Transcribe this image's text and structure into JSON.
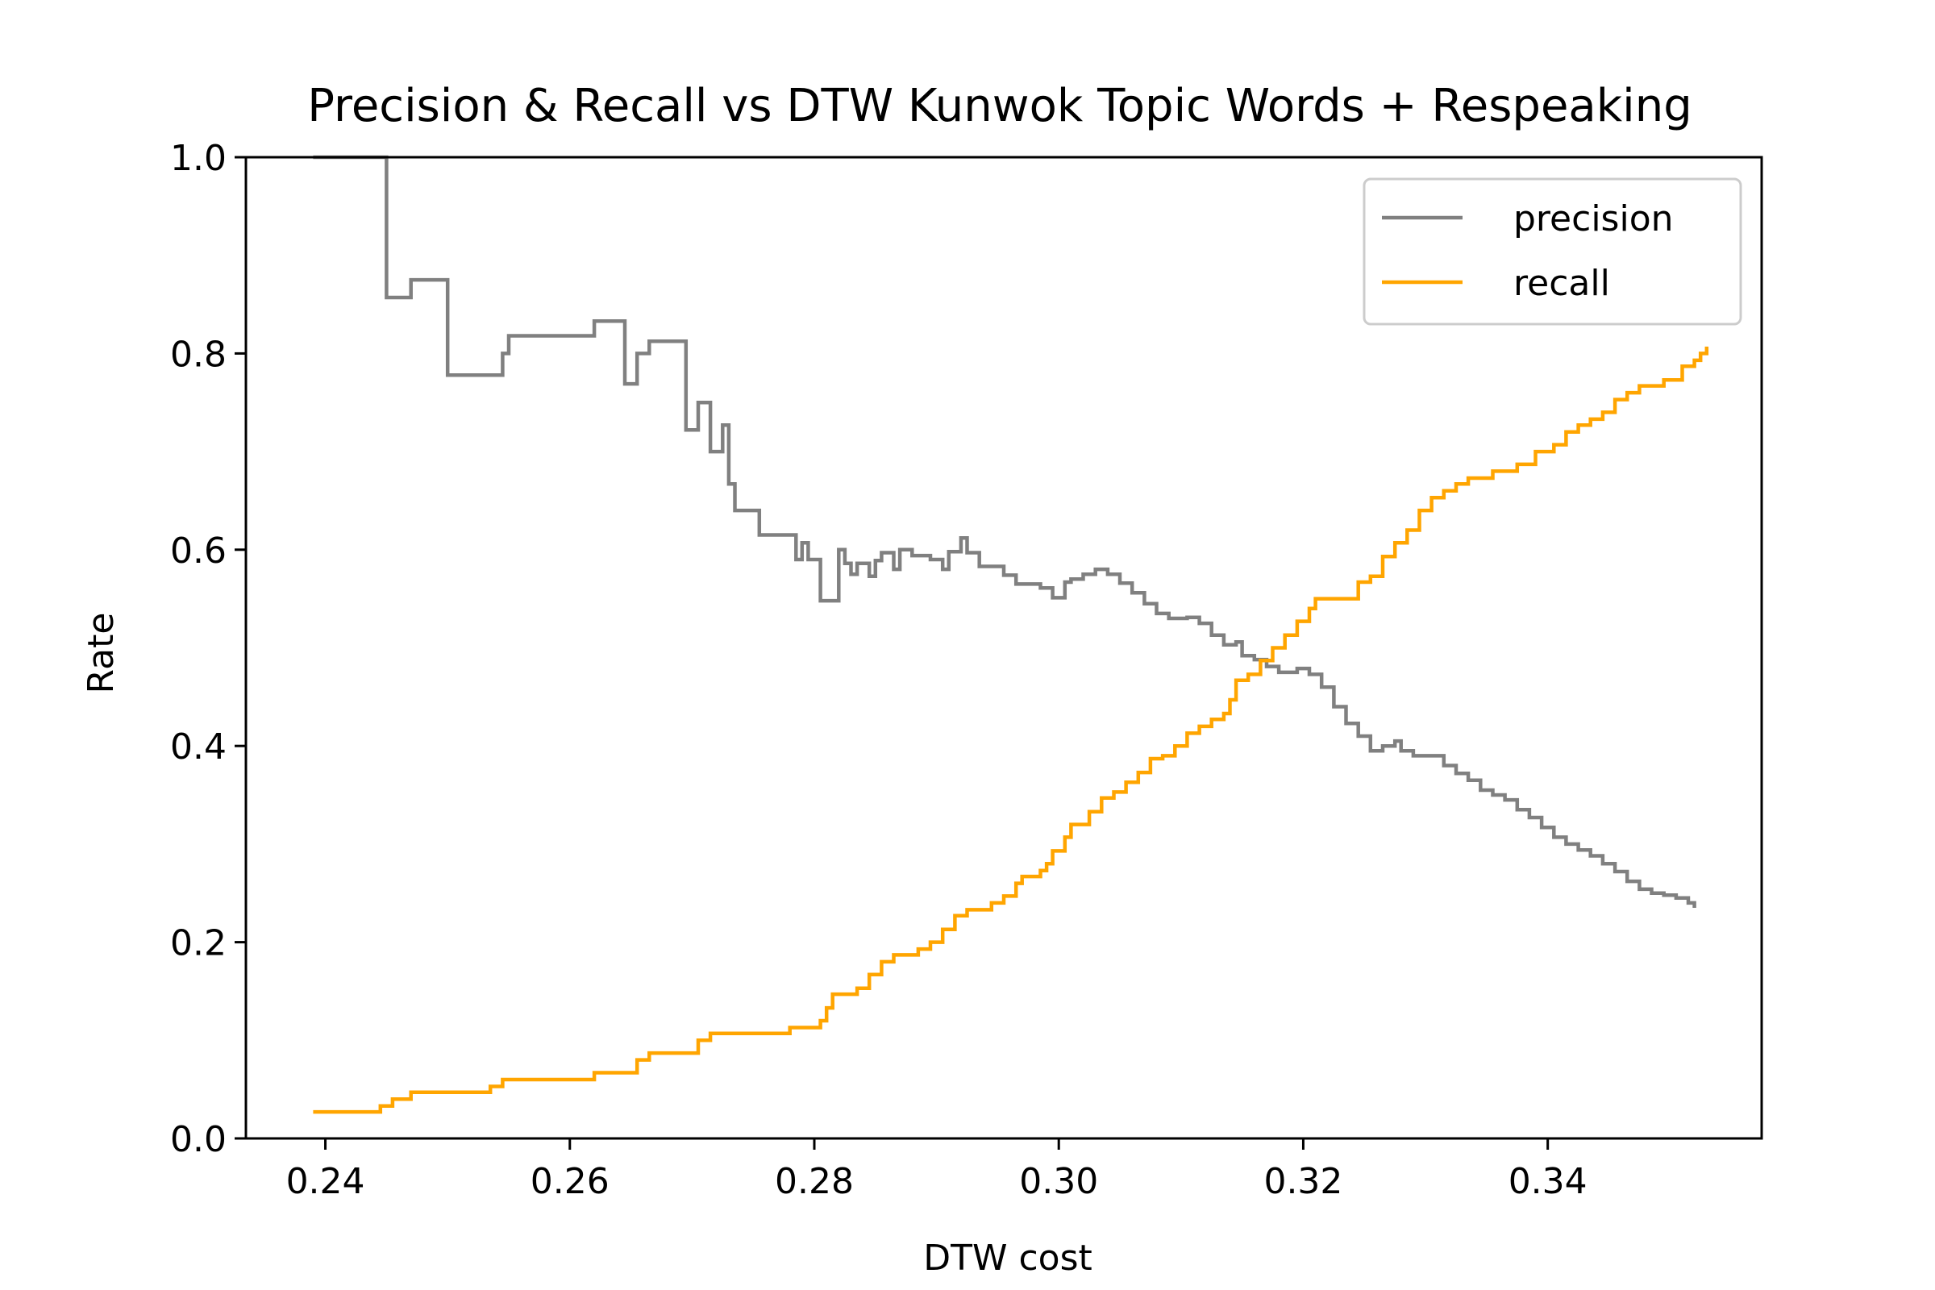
{
  "chart_data": {
    "type": "line",
    "title": "Precision & Recall vs DTW Kunwok Topic Words + Respeaking",
    "xlabel": "DTW cost",
    "ylabel": "Rate",
    "xlim": [
      0.2335,
      0.3575
    ],
    "ylim": [
      0,
      1
    ],
    "xticks": [
      "0.24",
      "0.26",
      "0.28",
      "0.30",
      "0.32",
      "0.34"
    ],
    "yticks": [
      "0.0",
      "0.2",
      "0.4",
      "0.6",
      "0.8",
      "1.0"
    ],
    "grid": false,
    "legend": "top-right",
    "series": [
      {
        "name": "precision",
        "color": "#808080",
        "step": true,
        "points": [
          [
            0.239,
            1.0
          ],
          [
            0.245,
            0.857
          ],
          [
            0.247,
            0.875
          ],
          [
            0.25,
            0.778
          ],
          [
            0.2545,
            0.8
          ],
          [
            0.255,
            0.818
          ],
          [
            0.262,
            0.833
          ],
          [
            0.2645,
            0.769
          ],
          [
            0.2655,
            0.8
          ],
          [
            0.2665,
            0.8125
          ],
          [
            0.2695,
            0.722
          ],
          [
            0.2705,
            0.75
          ],
          [
            0.2715,
            0.7
          ],
          [
            0.2725,
            0.727
          ],
          [
            0.273,
            0.667
          ],
          [
            0.2735,
            0.64
          ],
          [
            0.2755,
            0.615
          ],
          [
            0.278,
            0.615
          ],
          [
            0.2785,
            0.59
          ],
          [
            0.279,
            0.607
          ],
          [
            0.2795,
            0.59
          ],
          [
            0.2805,
            0.548
          ],
          [
            0.282,
            0.6
          ],
          [
            0.2825,
            0.586
          ],
          [
            0.283,
            0.575
          ],
          [
            0.2835,
            0.586
          ],
          [
            0.2845,
            0.573
          ],
          [
            0.285,
            0.589
          ],
          [
            0.2855,
            0.597
          ],
          [
            0.2865,
            0.58
          ],
          [
            0.287,
            0.6
          ],
          [
            0.288,
            0.594
          ],
          [
            0.2895,
            0.59
          ],
          [
            0.2905,
            0.58
          ],
          [
            0.291,
            0.598
          ],
          [
            0.292,
            0.612
          ],
          [
            0.2925,
            0.597
          ],
          [
            0.2935,
            0.583
          ],
          [
            0.2955,
            0.574
          ],
          [
            0.2965,
            0.565
          ],
          [
            0.2985,
            0.561
          ],
          [
            0.2995,
            0.551
          ],
          [
            0.3005,
            0.567
          ],
          [
            0.301,
            0.57
          ],
          [
            0.302,
            0.575
          ],
          [
            0.303,
            0.58
          ],
          [
            0.304,
            0.575
          ],
          [
            0.305,
            0.566
          ],
          [
            0.306,
            0.556
          ],
          [
            0.307,
            0.545
          ],
          [
            0.308,
            0.535
          ],
          [
            0.309,
            0.53
          ],
          [
            0.3105,
            0.531
          ],
          [
            0.3115,
            0.525
          ],
          [
            0.3125,
            0.513
          ],
          [
            0.3135,
            0.503
          ],
          [
            0.3145,
            0.506
          ],
          [
            0.315,
            0.492
          ],
          [
            0.316,
            0.488
          ],
          [
            0.317,
            0.481
          ],
          [
            0.318,
            0.475
          ],
          [
            0.3195,
            0.479
          ],
          [
            0.3205,
            0.473
          ],
          [
            0.3215,
            0.46
          ],
          [
            0.3225,
            0.44
          ],
          [
            0.3235,
            0.423
          ],
          [
            0.3245,
            0.41
          ],
          [
            0.3255,
            0.395
          ],
          [
            0.3265,
            0.4
          ],
          [
            0.3275,
            0.405
          ],
          [
            0.328,
            0.395
          ],
          [
            0.329,
            0.39
          ],
          [
            0.3305,
            0.39
          ],
          [
            0.3315,
            0.38
          ],
          [
            0.3325,
            0.372
          ],
          [
            0.3335,
            0.365
          ],
          [
            0.3345,
            0.355
          ],
          [
            0.3355,
            0.35
          ],
          [
            0.3365,
            0.345
          ],
          [
            0.3375,
            0.335
          ],
          [
            0.3385,
            0.327
          ],
          [
            0.3395,
            0.317
          ],
          [
            0.3405,
            0.307
          ],
          [
            0.3415,
            0.3
          ],
          [
            0.3425,
            0.294
          ],
          [
            0.3435,
            0.288
          ],
          [
            0.3445,
            0.28
          ],
          [
            0.3455,
            0.272
          ],
          [
            0.3465,
            0.262
          ],
          [
            0.3475,
            0.254
          ],
          [
            0.3485,
            0.25
          ],
          [
            0.3495,
            0.248
          ],
          [
            0.3505,
            0.245
          ],
          [
            0.3515,
            0.24
          ],
          [
            0.352,
            0.235
          ]
        ]
      },
      {
        "name": "recall",
        "color": "#FFA500",
        "step": true,
        "points": [
          [
            0.239,
            0.027
          ],
          [
            0.2445,
            0.033
          ],
          [
            0.2455,
            0.04
          ],
          [
            0.247,
            0.047
          ],
          [
            0.2535,
            0.053
          ],
          [
            0.2545,
            0.06
          ],
          [
            0.262,
            0.067
          ],
          [
            0.2655,
            0.08
          ],
          [
            0.2665,
            0.087
          ],
          [
            0.2705,
            0.1
          ],
          [
            0.2715,
            0.107
          ],
          [
            0.278,
            0.113
          ],
          [
            0.2805,
            0.12
          ],
          [
            0.281,
            0.133
          ],
          [
            0.2815,
            0.147
          ],
          [
            0.2835,
            0.153
          ],
          [
            0.2845,
            0.167
          ],
          [
            0.2855,
            0.18
          ],
          [
            0.2865,
            0.187
          ],
          [
            0.2885,
            0.193
          ],
          [
            0.2895,
            0.2
          ],
          [
            0.2905,
            0.213
          ],
          [
            0.2915,
            0.227
          ],
          [
            0.2925,
            0.233
          ],
          [
            0.2945,
            0.24
          ],
          [
            0.2955,
            0.247
          ],
          [
            0.2965,
            0.26
          ],
          [
            0.297,
            0.267
          ],
          [
            0.2985,
            0.273
          ],
          [
            0.299,
            0.28
          ],
          [
            0.2995,
            0.293
          ],
          [
            0.3005,
            0.307
          ],
          [
            0.301,
            0.32
          ],
          [
            0.3025,
            0.333
          ],
          [
            0.3035,
            0.347
          ],
          [
            0.3045,
            0.353
          ],
          [
            0.3055,
            0.363
          ],
          [
            0.3065,
            0.373
          ],
          [
            0.3075,
            0.387
          ],
          [
            0.3085,
            0.39
          ],
          [
            0.3095,
            0.4
          ],
          [
            0.3105,
            0.413
          ],
          [
            0.3115,
            0.42
          ],
          [
            0.3125,
            0.427
          ],
          [
            0.3135,
            0.433
          ],
          [
            0.314,
            0.447
          ],
          [
            0.3145,
            0.467
          ],
          [
            0.3155,
            0.473
          ],
          [
            0.3165,
            0.487
          ],
          [
            0.3175,
            0.5
          ],
          [
            0.3185,
            0.513
          ],
          [
            0.3195,
            0.527
          ],
          [
            0.3205,
            0.54
          ],
          [
            0.321,
            0.55
          ],
          [
            0.3245,
            0.567
          ],
          [
            0.3255,
            0.573
          ],
          [
            0.3265,
            0.593
          ],
          [
            0.3275,
            0.607
          ],
          [
            0.3285,
            0.62
          ],
          [
            0.3295,
            0.64
          ],
          [
            0.3305,
            0.653
          ],
          [
            0.3315,
            0.66
          ],
          [
            0.3325,
            0.667
          ],
          [
            0.3335,
            0.673
          ],
          [
            0.3355,
            0.68
          ],
          [
            0.3375,
            0.687
          ],
          [
            0.339,
            0.7
          ],
          [
            0.3405,
            0.707
          ],
          [
            0.3415,
            0.72
          ],
          [
            0.3425,
            0.727
          ],
          [
            0.3435,
            0.733
          ],
          [
            0.3445,
            0.74
          ],
          [
            0.3455,
            0.753
          ],
          [
            0.3465,
            0.76
          ],
          [
            0.3475,
            0.767
          ],
          [
            0.3495,
            0.773
          ],
          [
            0.351,
            0.787
          ],
          [
            0.352,
            0.793
          ],
          [
            0.3525,
            0.8
          ],
          [
            0.353,
            0.807
          ]
        ]
      }
    ]
  }
}
